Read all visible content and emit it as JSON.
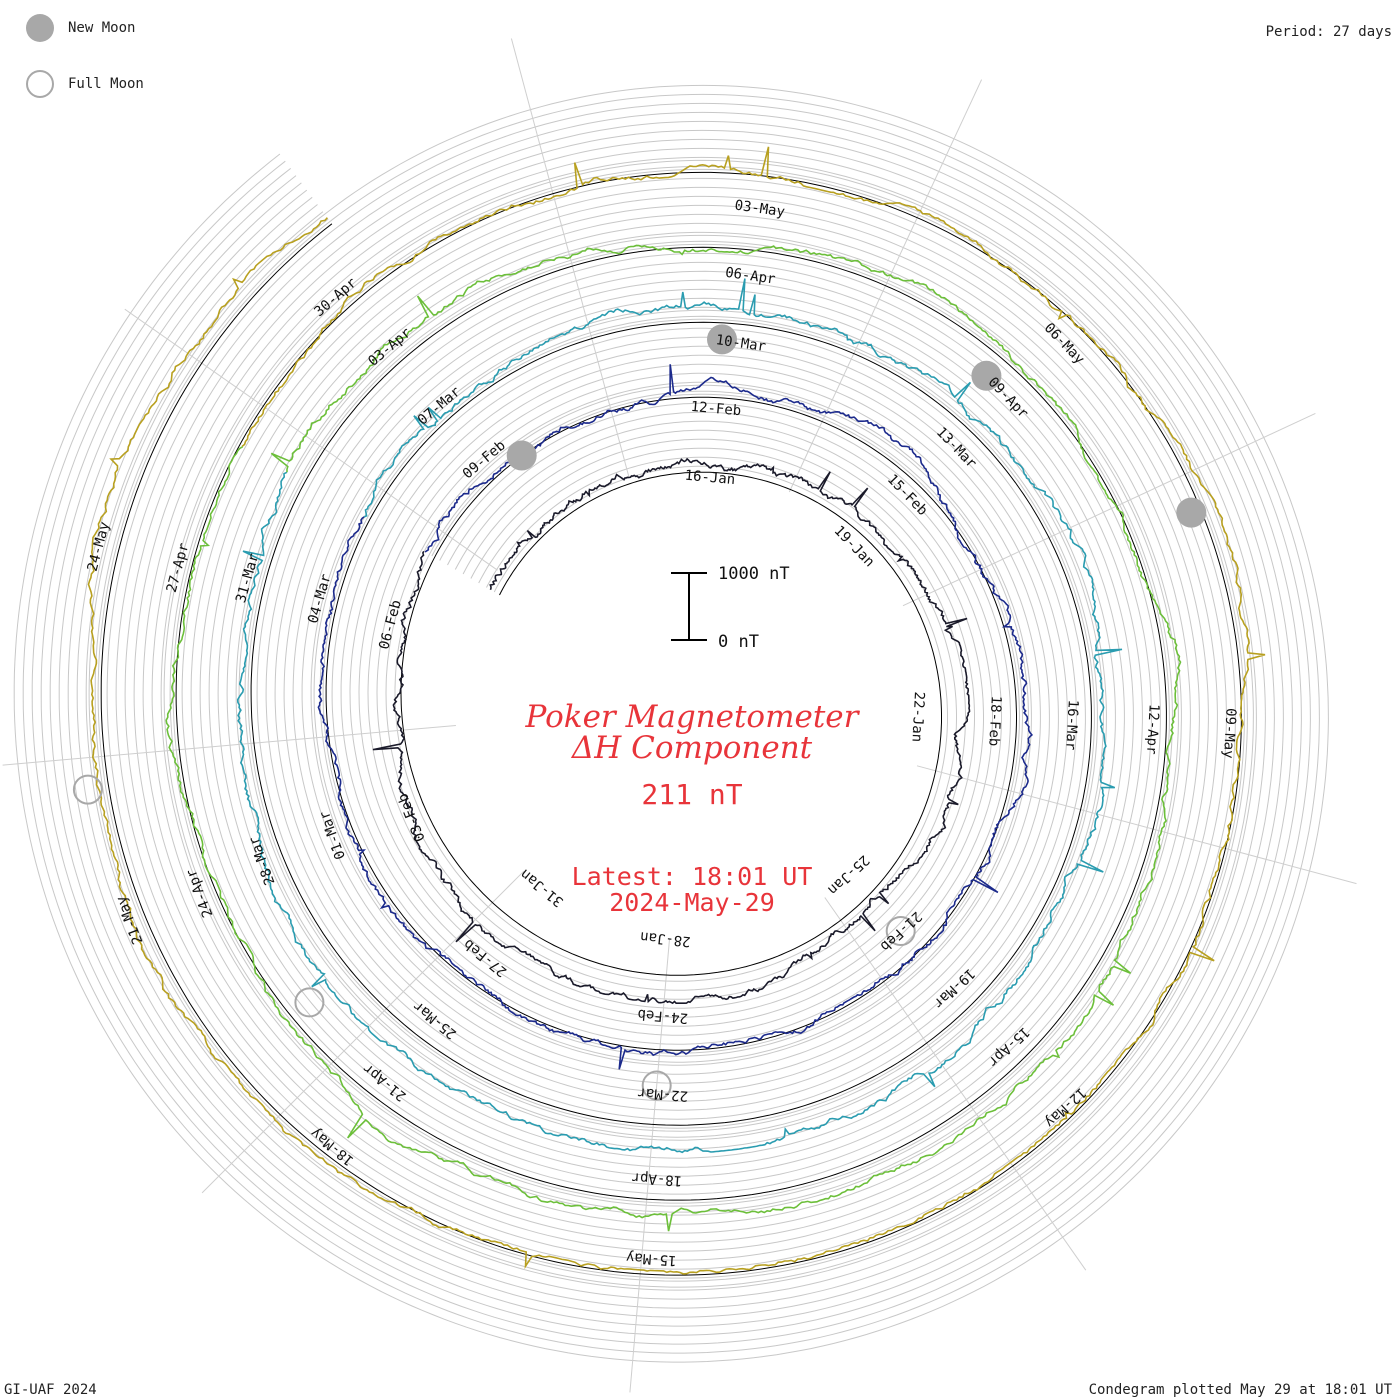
{
  "legend": {
    "new_moon_label": "New Moon",
    "full_moon_label": "Full Moon",
    "new_moon_color": "#a8a8a8",
    "full_moon_color": "#a8a8a8"
  },
  "period_label": "Period: 27 days",
  "footer": {
    "left": "GI-UAF 2024",
    "right": "Condegram plotted May 29 at 18:01 UT"
  },
  "center": {
    "title_line1": "Poker Magnetometer",
    "title_line2": "ΔH Component",
    "value": "211 nT",
    "latest_line1": "Latest: 18:01 UT",
    "latest_line2": "2024-May-29",
    "text_color": "#e8343a"
  },
  "scale_bar": {
    "top_label": "1000 nT",
    "bottom_label": "0 nT",
    "top_value_nT": 1000,
    "bottom_value_nT": 0
  },
  "chart_data": {
    "type": "line",
    "period_days": 27,
    "start_date": "2024-01-14",
    "end_date": "2024-05-29T18:01",
    "value_scale_nT": [
      0,
      1000
    ],
    "revolutions": [
      {
        "color": "#1a1a2a",
        "start": "2024-01-14"
      },
      {
        "color": "#1c2a8c",
        "start": "2024-02-10"
      },
      {
        "color": "#2a9cb0",
        "start": "2024-03-08"
      },
      {
        "color": "#6cbf3a",
        "start": "2024-04-04"
      },
      {
        "color": "#b8a020",
        "start": "2024-05-01"
      }
    ],
    "date_labels": [
      {
        "text": "16-Jan",
        "r": 228,
        "deg": 5
      },
      {
        "text": "19-Jan",
        "r": 228,
        "deg": 46
      },
      {
        "text": "22-Jan",
        "r": 228,
        "deg": 93
      },
      {
        "text": "25-Jan",
        "r": 232,
        "deg": 137
      },
      {
        "text": "28-Jan",
        "r": 235,
        "deg": -174
      },
      {
        "text": "31-Jan",
        "r": 235,
        "deg": -141
      },
      {
        "text": "03-Feb",
        "r": 300,
        "deg": -112
      },
      {
        "text": "06-Feb",
        "r": 310,
        "deg": -75
      },
      {
        "text": "09-Feb",
        "r": 320,
        "deg": -40
      },
      {
        "text": "12-Feb",
        "r": 297,
        "deg": 5
      },
      {
        "text": "15-Feb",
        "r": 302,
        "deg": 46
      },
      {
        "text": "18-Feb",
        "r": 305,
        "deg": 93
      },
      {
        "text": "21-Feb",
        "r": 309,
        "deg": 137
      },
      {
        "text": "24-Feb",
        "r": 312,
        "deg": -175
      },
      {
        "text": "27-Feb",
        "r": 325,
        "deg": -141
      },
      {
        "text": "01-Mar",
        "r": 380,
        "deg": -110
      },
      {
        "text": "04-Mar",
        "r": 385,
        "deg": -74
      },
      {
        "text": "07-Mar",
        "r": 390,
        "deg": -40
      },
      {
        "text": "10-Mar",
        "r": 365,
        "deg": 8
      },
      {
        "text": "13-Mar",
        "r": 370,
        "deg": 46
      },
      {
        "text": "16-Mar",
        "r": 382,
        "deg": 93
      },
      {
        "text": "19-Mar",
        "r": 387,
        "deg": 137
      },
      {
        "text": "22-Mar",
        "r": 390,
        "deg": -176
      },
      {
        "text": "25-Mar",
        "r": 405,
        "deg": -141
      },
      {
        "text": "28-Mar",
        "r": 455,
        "deg": -110
      },
      {
        "text": "31-Mar",
        "r": 460,
        "deg": -74
      },
      {
        "text": "03-Apr",
        "r": 467,
        "deg": -40
      },
      {
        "text": "06-Apr",
        "r": 433,
        "deg": 8
      },
      {
        "text": "09-Apr",
        "r": 442,
        "deg": 46
      },
      {
        "text": "12-Apr",
        "r": 463,
        "deg": 93
      },
      {
        "text": "15-Apr",
        "r": 467,
        "deg": 137
      },
      {
        "text": "18-Apr",
        "r": 475,
        "deg": -176
      },
      {
        "text": "21-Apr",
        "r": 485,
        "deg": -141
      },
      {
        "text": "24-Apr",
        "r": 525,
        "deg": -111
      },
      {
        "text": "27-Apr",
        "r": 530,
        "deg": -75
      },
      {
        "text": "30-Apr",
        "r": 540,
        "deg": -41
      },
      {
        "text": "03-May",
        "r": 501,
        "deg": 8
      },
      {
        "text": "06-May",
        "r": 520,
        "deg": 46
      },
      {
        "text": "09-May",
        "r": 540,
        "deg": 93
      },
      {
        "text": "12-May",
        "r": 550,
        "deg": 137
      },
      {
        "text": "15-May",
        "r": 555,
        "deg": -176
      },
      {
        "text": "18-May",
        "r": 568,
        "deg": -141
      },
      {
        "text": "21-May",
        "r": 600,
        "deg": -111
      },
      {
        "text": "24-May",
        "r": 612,
        "deg": -75
      }
    ],
    "new_moons": [
      {
        "r": 301,
        "deg": -34
      },
      {
        "r": 367,
        "deg": 5
      },
      {
        "r": 443,
        "deg": 42
      },
      {
        "r": 537,
        "deg": 69
      }
    ],
    "full_moons": [
      {
        "r": 309,
        "deg": 137
      },
      {
        "r": 382,
        "deg": -175
      },
      {
        "r": 483,
        "deg": -128
      },
      {
        "r": 608,
        "deg": -98
      }
    ]
  }
}
